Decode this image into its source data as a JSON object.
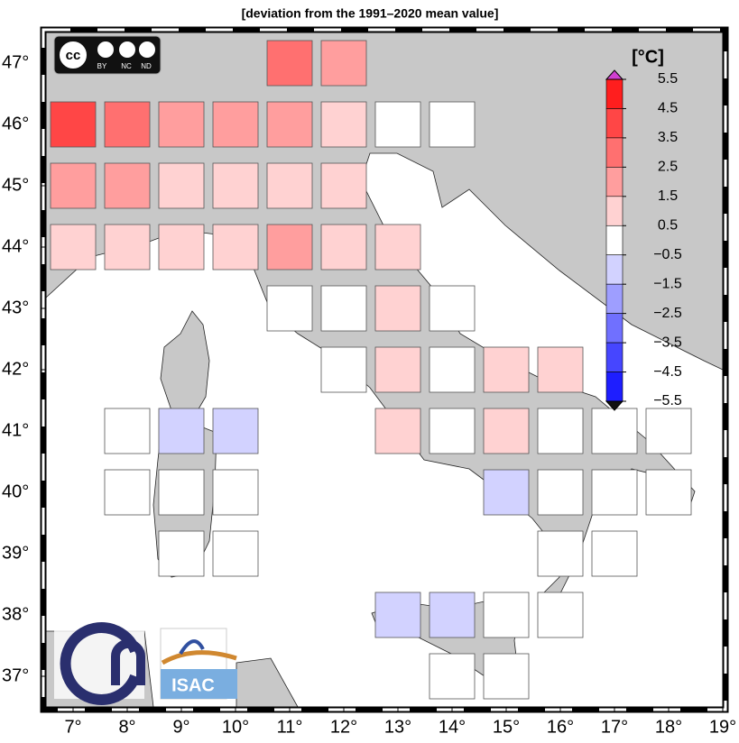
{
  "title": "[deviation from the 1991–2020 mean value]",
  "map": {
    "xlim": [
      6.5,
      19
    ],
    "ylim": [
      36.5,
      47.5
    ],
    "xticks": [
      {
        "value": 7,
        "label": "7°"
      },
      {
        "value": 8,
        "label": "8°"
      },
      {
        "value": 9,
        "label": "9°"
      },
      {
        "value": 10,
        "label": "10°"
      },
      {
        "value": 11,
        "label": "11°"
      },
      {
        "value": 12,
        "label": "12°"
      },
      {
        "value": 13,
        "label": "13°"
      },
      {
        "value": 14,
        "label": "14°"
      },
      {
        "value": 15,
        "label": "15°"
      },
      {
        "value": 16,
        "label": "16°"
      },
      {
        "value": 17,
        "label": "17°"
      },
      {
        "value": 18,
        "label": "18°"
      },
      {
        "value": 19,
        "label": "19°"
      }
    ],
    "yticks": [
      {
        "value": 37,
        "label": "37°"
      },
      {
        "value": 38,
        "label": "38°"
      },
      {
        "value": 39,
        "label": "39°"
      },
      {
        "value": 40,
        "label": "40°"
      },
      {
        "value": 41,
        "label": "41°"
      },
      {
        "value": 42,
        "label": "42°"
      },
      {
        "value": 43,
        "label": "43°"
      },
      {
        "value": 44,
        "label": "44°"
      },
      {
        "value": 45,
        "label": "45°"
      },
      {
        "value": 46,
        "label": "46°"
      },
      {
        "value": 47,
        "label": "47°"
      }
    ],
    "cells": [
      {
        "lon": 11,
        "lat": 47,
        "value": 3
      },
      {
        "lon": 12,
        "lat": 47,
        "value": 2
      },
      {
        "lon": 7,
        "lat": 46,
        "value": 4
      },
      {
        "lon": 8,
        "lat": 46,
        "value": 3
      },
      {
        "lon": 9,
        "lat": 46,
        "value": 2
      },
      {
        "lon": 10,
        "lat": 46,
        "value": 2
      },
      {
        "lon": 11,
        "lat": 46,
        "value": 2
      },
      {
        "lon": 12,
        "lat": 46,
        "value": 1
      },
      {
        "lon": 13,
        "lat": 46,
        "value": 0
      },
      {
        "lon": 14,
        "lat": 46,
        "value": 0
      },
      {
        "lon": 7,
        "lat": 45,
        "value": 2
      },
      {
        "lon": 8,
        "lat": 45,
        "value": 2
      },
      {
        "lon": 9,
        "lat": 45,
        "value": 1
      },
      {
        "lon": 10,
        "lat": 45,
        "value": 1
      },
      {
        "lon": 11,
        "lat": 45,
        "value": 1
      },
      {
        "lon": 12,
        "lat": 45,
        "value": 1
      },
      {
        "lon": 7,
        "lat": 44,
        "value": 1
      },
      {
        "lon": 8,
        "lat": 44,
        "value": 1
      },
      {
        "lon": 9,
        "lat": 44,
        "value": 1
      },
      {
        "lon": 10,
        "lat": 44,
        "value": 1
      },
      {
        "lon": 11,
        "lat": 44,
        "value": 2
      },
      {
        "lon": 12,
        "lat": 44,
        "value": 1
      },
      {
        "lon": 13,
        "lat": 44,
        "value": 1
      },
      {
        "lon": 11,
        "lat": 43,
        "value": 0
      },
      {
        "lon": 12,
        "lat": 43,
        "value": 0
      },
      {
        "lon": 13,
        "lat": 43,
        "value": 1
      },
      {
        "lon": 14,
        "lat": 43,
        "value": 0
      },
      {
        "lon": 12,
        "lat": 42,
        "value": 0
      },
      {
        "lon": 13,
        "lat": 42,
        "value": 1
      },
      {
        "lon": 14,
        "lat": 42,
        "value": 0
      },
      {
        "lon": 15,
        "lat": 42,
        "value": 1
      },
      {
        "lon": 16,
        "lat": 42,
        "value": 1
      },
      {
        "lon": 8,
        "lat": 41,
        "value": 0
      },
      {
        "lon": 9,
        "lat": 41,
        "value": -1
      },
      {
        "lon": 10,
        "lat": 41,
        "value": -1
      },
      {
        "lon": 13,
        "lat": 41,
        "value": 1
      },
      {
        "lon": 14,
        "lat": 41,
        "value": 0
      },
      {
        "lon": 15,
        "lat": 41,
        "value": 1
      },
      {
        "lon": 16,
        "lat": 41,
        "value": 0
      },
      {
        "lon": 17,
        "lat": 41,
        "value": 0
      },
      {
        "lon": 18,
        "lat": 41,
        "value": 0
      },
      {
        "lon": 8,
        "lat": 40,
        "value": 0
      },
      {
        "lon": 9,
        "lat": 40,
        "value": 0
      },
      {
        "lon": 10,
        "lat": 40,
        "value": 0
      },
      {
        "lon": 15,
        "lat": 40,
        "value": -1
      },
      {
        "lon": 16,
        "lat": 40,
        "value": 0
      },
      {
        "lon": 17,
        "lat": 40,
        "value": 0
      },
      {
        "lon": 18,
        "lat": 40,
        "value": 0
      },
      {
        "lon": 9,
        "lat": 39,
        "value": 0
      },
      {
        "lon": 10,
        "lat": 39,
        "value": 0
      },
      {
        "lon": 16,
        "lat": 39,
        "value": 0
      },
      {
        "lon": 17,
        "lat": 39,
        "value": 0
      },
      {
        "lon": 13,
        "lat": 38,
        "value": -1
      },
      {
        "lon": 14,
        "lat": 38,
        "value": -1
      },
      {
        "lon": 15,
        "lat": 38,
        "value": 0
      },
      {
        "lon": 16,
        "lat": 38,
        "value": 0
      },
      {
        "lon": 14,
        "lat": 37,
        "value": 0
      },
      {
        "lon": 15,
        "lat": 37,
        "value": 0
      }
    ]
  },
  "colorbar": {
    "unit": "[°C]",
    "levels": [
      {
        "value": 5.5,
        "label": "5.5"
      },
      {
        "value": 4.5,
        "label": "4.5"
      },
      {
        "value": 3.5,
        "label": "3.5"
      },
      {
        "value": 2.5,
        "label": "2.5"
      },
      {
        "value": 1.5,
        "label": "1.5"
      },
      {
        "value": 0.5,
        "label": "0.5"
      },
      {
        "value": -0.5,
        "label": "−0.5"
      },
      {
        "value": -1.5,
        "label": "−1.5"
      },
      {
        "value": -2.5,
        "label": "−2.5"
      },
      {
        "value": -3.5,
        "label": "−3.5"
      },
      {
        "value": -4.5,
        "label": "−4.5"
      },
      {
        "value": -5.5,
        "label": "−5.5"
      }
    ],
    "colors": [
      "#ff1e1e",
      "#ff4646",
      "#ff7070",
      "#ff9e9e",
      "#ffd2d2",
      "#ffffff",
      "#d2d2ff",
      "#9e9eff",
      "#7070ff",
      "#4646ff",
      "#1e1eff"
    ],
    "over_color": "#d040d0",
    "under_color": "#111111"
  },
  "logos": {
    "cc": "cc",
    "by": "BY",
    "nc": "NC",
    "nd": "ND",
    "isac": "ISAC"
  }
}
